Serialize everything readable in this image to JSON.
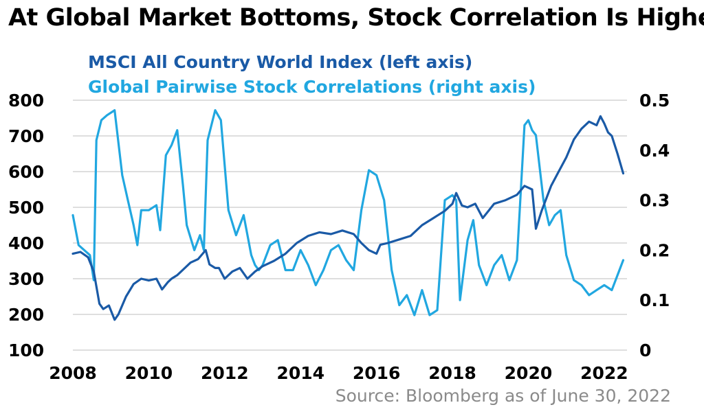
{
  "chart_data": {
    "type": "line",
    "title": "At Global Market Bottoms, Stock Correlation Is Higher",
    "source": "Source: Bloomberg as of June 30, 2022",
    "grid": true,
    "x_ticks": [
      "2008",
      "2010",
      "2012",
      "2014",
      "2016",
      "2018",
      "2020",
      "2022"
    ],
    "xlim": [
      2008,
      2022.6
    ],
    "left_axis": {
      "ylim": [
        100,
        800
      ],
      "ticks": [
        "100",
        "200",
        "300",
        "400",
        "500",
        "600",
        "700",
        "800"
      ]
    },
    "right_axis": {
      "ylim": [
        0,
        0.5
      ],
      "ticks": [
        "0",
        "0.1",
        "0.2",
        "0.3",
        "0.4",
        "0.5"
      ]
    },
    "series": [
      {
        "name": "MSCI All Country World Index (left axis)",
        "axis": "left",
        "color": "#1a5aa6",
        "x": [
          2008.0,
          2008.2,
          2008.4,
          2008.55,
          2008.7,
          2008.8,
          2008.95,
          2009.1,
          2009.2,
          2009.4,
          2009.6,
          2009.8,
          2010.0,
          2010.2,
          2010.35,
          2010.5,
          2010.6,
          2010.75,
          2010.9,
          2011.1,
          2011.3,
          2011.5,
          2011.6,
          2011.75,
          2011.85,
          2012.0,
          2012.2,
          2012.4,
          2012.6,
          2012.8,
          2013.0,
          2013.3,
          2013.6,
          2013.9,
          2014.2,
          2014.5,
          2014.8,
          2015.1,
          2015.4,
          2015.6,
          2015.8,
          2016.0,
          2016.1,
          2016.3,
          2016.6,
          2016.9,
          2017.2,
          2017.5,
          2017.8,
          2018.0,
          2018.1,
          2018.25,
          2018.4,
          2018.6,
          2018.8,
          2018.95,
          2019.1,
          2019.4,
          2019.7,
          2019.9,
          2020.1,
          2020.2,
          2020.35,
          2020.6,
          2020.8,
          2021.0,
          2021.2,
          2021.4,
          2021.6,
          2021.8,
          2021.9,
          2022.0,
          2022.1,
          2022.2,
          2022.35,
          2022.5
        ],
        "values": [
          370,
          375,
          360,
          320,
          230,
          215,
          225,
          185,
          200,
          250,
          285,
          300,
          295,
          300,
          270,
          290,
          300,
          310,
          325,
          345,
          355,
          380,
          340,
          330,
          330,
          300,
          320,
          330,
          300,
          320,
          335,
          350,
          370,
          400,
          420,
          430,
          425,
          435,
          425,
          400,
          380,
          370,
          395,
          400,
          410,
          420,
          450,
          470,
          490,
          510,
          540,
          505,
          500,
          510,
          470,
          490,
          510,
          520,
          535,
          560,
          550,
          440,
          490,
          560,
          600,
          640,
          690,
          720,
          740,
          730,
          755,
          735,
          710,
          700,
          650,
          595
        ]
      },
      {
        "name": "Global Pairwise Stock Correlations (right axis)",
        "axis": "right",
        "color": "#21a7e0",
        "x": [
          2008.0,
          2008.15,
          2008.3,
          2008.45,
          2008.55,
          2008.62,
          2008.75,
          2008.9,
          2009.1,
          2009.3,
          2009.45,
          2009.6,
          2009.7,
          2009.8,
          2009.9,
          2010.0,
          2010.2,
          2010.3,
          2010.45,
          2010.6,
          2010.75,
          2010.9,
          2011.0,
          2011.2,
          2011.35,
          2011.45,
          2011.55,
          2011.65,
          2011.75,
          2011.9,
          2012.1,
          2012.3,
          2012.5,
          2012.7,
          2012.8,
          2012.9,
          2013.0,
          2013.2,
          2013.4,
          2013.6,
          2013.8,
          2014.0,
          2014.2,
          2014.4,
          2014.6,
          2014.8,
          2015.0,
          2015.2,
          2015.4,
          2015.6,
          2015.8,
          2016.0,
          2016.2,
          2016.4,
          2016.6,
          2016.8,
          2017.0,
          2017.2,
          2017.4,
          2017.6,
          2017.8,
          2018.0,
          2018.1,
          2018.2,
          2018.4,
          2018.55,
          2018.7,
          2018.9,
          2019.1,
          2019.3,
          2019.5,
          2019.7,
          2019.9,
          2020.0,
          2020.1,
          2020.2,
          2020.4,
          2020.55,
          2020.7,
          2020.85,
          2021.0,
          2021.2,
          2021.4,
          2021.6,
          2021.8,
          2022.0,
          2022.2,
          2022.4,
          2022.5
        ],
        "values": [
          0.27,
          0.21,
          0.2,
          0.19,
          0.14,
          0.42,
          0.46,
          0.47,
          0.48,
          0.35,
          0.3,
          0.25,
          0.21,
          0.28,
          0.28,
          0.28,
          0.29,
          0.24,
          0.39,
          0.41,
          0.44,
          0.33,
          0.25,
          0.2,
          0.23,
          0.2,
          0.42,
          0.45,
          0.48,
          0.46,
          0.28,
          0.23,
          0.27,
          0.19,
          0.17,
          0.16,
          0.17,
          0.21,
          0.22,
          0.16,
          0.16,
          0.2,
          0.17,
          0.13,
          0.16,
          0.2,
          0.21,
          0.18,
          0.16,
          0.28,
          0.36,
          0.35,
          0.3,
          0.16,
          0.09,
          0.11,
          0.07,
          0.12,
          0.07,
          0.08,
          0.3,
          0.31,
          0.3,
          0.1,
          0.22,
          0.26,
          0.17,
          0.13,
          0.17,
          0.19,
          0.14,
          0.18,
          0.45,
          0.46,
          0.44,
          0.43,
          0.3,
          0.25,
          0.27,
          0.28,
          0.19,
          0.14,
          0.13,
          0.11,
          0.12,
          0.13,
          0.12,
          0.16,
          0.18
        ]
      }
    ]
  }
}
